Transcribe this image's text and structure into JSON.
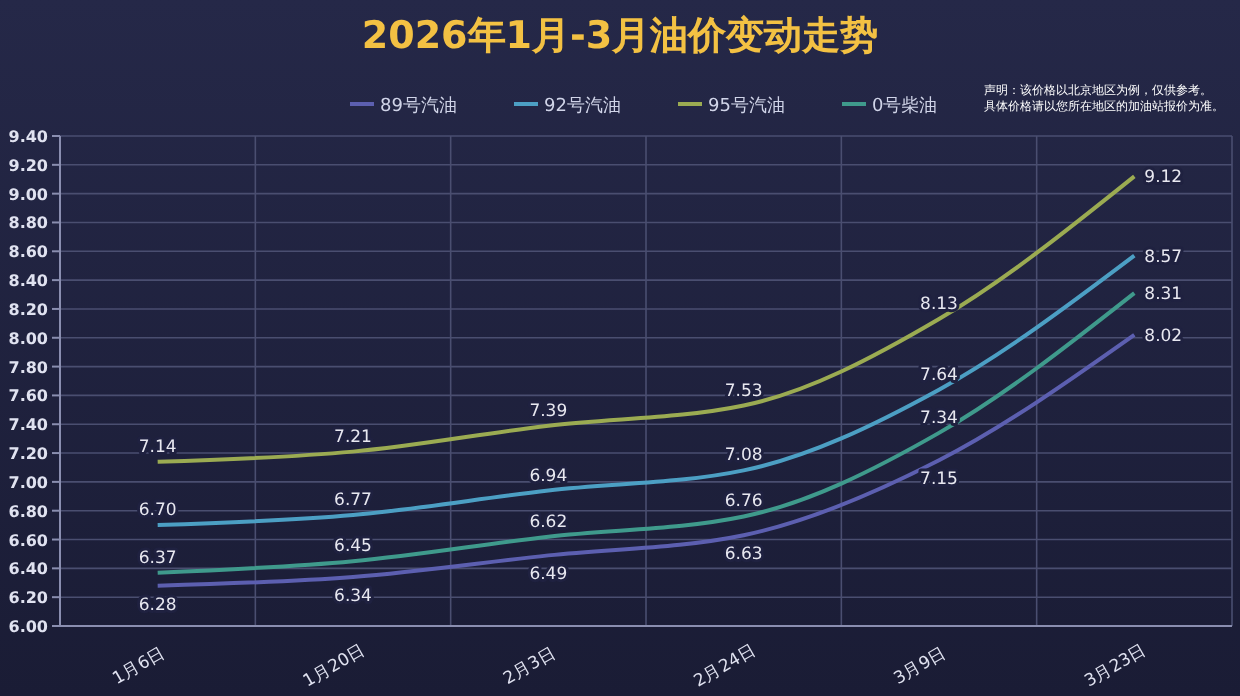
{
  "chart_data": {
    "type": "line",
    "title": "2026年1月-3月油价变动走势",
    "annotations": [
      "声明：该价格以北京地区为例，仅供参考。",
      "具体价格请以您所在地区的加油站报价为准。"
    ],
    "categories": [
      "1月6日",
      "1月20日",
      "2月3日",
      "2月24日",
      "3月9日",
      "3月23日"
    ],
    "series": [
      {
        "name": "89号汽油",
        "color": "#5c5fb0",
        "values": [
          6.28,
          6.34,
          6.49,
          6.63,
          7.15,
          8.02
        ],
        "value_labels": [
          "6.28",
          "6.34",
          "6.49",
          "6.63",
          "7.15",
          "8.02"
        ]
      },
      {
        "name": "92号汽油",
        "color": "#4c9fc4",
        "values": [
          6.7,
          6.77,
          6.94,
          7.08,
          7.64,
          8.57
        ],
        "value_labels": [
          "6.70",
          "6.77",
          "6.94",
          "7.08",
          "7.64",
          "8.57"
        ]
      },
      {
        "name": "95号汽油",
        "color": "#9bab52",
        "values": [
          7.14,
          7.21,
          7.39,
          7.53,
          8.13,
          9.12
        ],
        "value_labels": [
          "7.14",
          "7.21",
          "7.39",
          "7.53",
          "8.13",
          "9.12"
        ]
      },
      {
        "name": "0号柴油",
        "color": "#3f9a8c",
        "values": [
          6.37,
          6.45,
          6.62,
          6.76,
          7.34,
          8.31
        ],
        "value_labels": [
          "6.37",
          "6.45",
          "6.62",
          "6.76",
          "7.34",
          "8.31"
        ]
      }
    ],
    "ylim": [
      6,
      9.4
    ],
    "yticks": [
      {
        "value": 6,
        "label": "6.00"
      },
      {
        "value": 6.2,
        "label": "6.20"
      },
      {
        "value": 6.4,
        "label": "6.40"
      },
      {
        "value": 6.6,
        "label": "6.60"
      },
      {
        "value": 6.8,
        "label": "6.80"
      },
      {
        "value": 7,
        "label": "7.00"
      },
      {
        "value": 7.2,
        "label": "7.20"
      },
      {
        "value": 7.4,
        "label": "7.40"
      },
      {
        "value": 7.6,
        "label": "7.60"
      },
      {
        "value": 7.8,
        "label": "7.80"
      },
      {
        "value": 8,
        "label": "8.00"
      },
      {
        "value": 8.2,
        "label": "8.20"
      },
      {
        "value": 8.4,
        "label": "8.40"
      },
      {
        "value": 8.6,
        "label": "8.60"
      },
      {
        "value": 8.8,
        "label": "8.80"
      },
      {
        "value": 9,
        "label": "9.00"
      },
      {
        "value": 9.2,
        "label": "9.20"
      },
      {
        "value": 9.4,
        "label": "9.40"
      }
    ],
    "grid": true,
    "legend": "top",
    "data_labels": true,
    "marker": "none",
    "line_style": "solid"
  }
}
